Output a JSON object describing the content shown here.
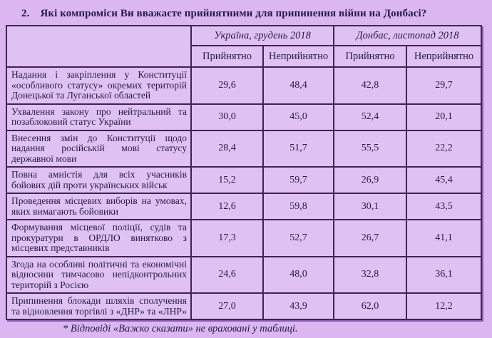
{
  "title": {
    "number": "2.",
    "text": "Які компроміси Ви вважаєте прийнятними для припинення війни на Донбасі?"
  },
  "table": {
    "group_headers": [
      "Україна, грудень 2018",
      "Донбас, листопад 2018"
    ],
    "sub_headers": [
      "Прийнятно",
      "Неприйнятно",
      "Прийнятно",
      "Неприйнятно"
    ],
    "rows": [
      {
        "label": "Надання і закріплення у Конституції «особливого статусу» окремих територій Донецької та Луганської областей",
        "values": [
          "29,6",
          "48,4",
          "42,8",
          "29,7"
        ]
      },
      {
        "label": "Ухвалення закону про нейтральний та позаблоковий статус України",
        "values": [
          "30,0",
          "45,0",
          "52,4",
          "20,1"
        ]
      },
      {
        "label": "Внесення змін до Конституції щодо надання російській мові статусу державної мови",
        "values": [
          "28,4",
          "51,7",
          "55,5",
          "22,2"
        ]
      },
      {
        "label": "Повна амністія для всіх учасників бойових дій проти українських військ",
        "values": [
          "15,2",
          "59,7",
          "26,9",
          "45,4"
        ]
      },
      {
        "label": "Проведення місцевих виборів на умовах, яких вимагають бойовики",
        "values": [
          "12,6",
          "59,8",
          "30,1",
          "43,5"
        ]
      },
      {
        "label": "Формування місцевої поліції, судів та прокуратури в ОРДЛО винятково з місцевих представників",
        "values": [
          "17,3",
          "52,7",
          "26,7",
          "41,1"
        ]
      },
      {
        "label": "Згода на особливі політичні та економічні відносини тимчасово непідконтрольних територій з Росією",
        "values": [
          "24,6",
          "48,0",
          "32,8",
          "36,1"
        ]
      },
      {
        "label": "Припинення блокади шляхів сполучення та відновлення торгівлі з «ДНР» та «ЛНР»",
        "values": [
          "27,0",
          "43,9",
          "62,0",
          "12,2"
        ]
      }
    ]
  },
  "footnote": "* Відповіді «Важко сказати» не враховані у таблиці.",
  "colors": {
    "page_bg": "#dcb6f1",
    "cell_bg": "#e0c2f2",
    "border": "#3f2453",
    "text": "#231a4e"
  }
}
